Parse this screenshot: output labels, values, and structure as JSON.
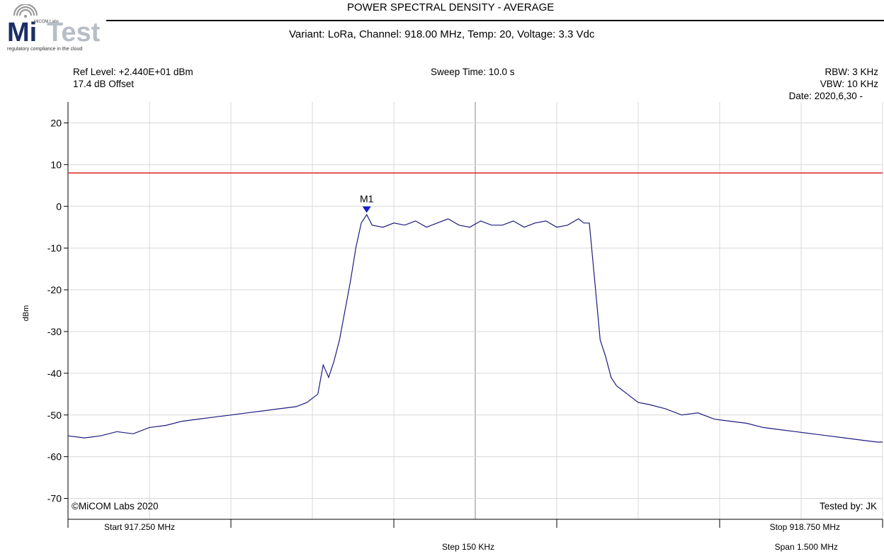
{
  "logo": {
    "brand_left": "Mi",
    "brand_right": "Test",
    "tag_small": "MiCOM Labs",
    "tagline": "regulatory compliance in the cloud",
    "icon": "wifi-signal-icon"
  },
  "header": {
    "title": "POWER SPECTRAL DENSITY - AVERAGE",
    "subtitle": "Variant: LoRa, Channel: 918.00 MHz, Temp: 20, Voltage: 3.3 Vdc"
  },
  "settings": {
    "ref_level": "Ref Level: +2.440E+01 dBm",
    "offset": "17.4 dB Offset",
    "sweep_time": "Sweep Time: 10.0 s",
    "rbw": "RBW: 3 KHz",
    "vbw": "VBW: 10 KHz",
    "date": "Date: 2020,6,30 -"
  },
  "footer": {
    "copyright": "©MiCOM Labs 2020",
    "tested_by": "Tested by: JK",
    "start": "Start 917.250 MHz",
    "stop": "Stop 918.750 MHz",
    "step": "Step 150 KHz",
    "span": "Span 1.500 MHz"
  },
  "colors": {
    "trace": "#1c1c80",
    "limit": "#e02020",
    "marker": "#1c1cc8",
    "grid": "#d8d8d8",
    "center_line": "#a8a8a8"
  },
  "chart_data": {
    "type": "line",
    "ylabel": "dBm",
    "xlim": [
      917.25,
      918.75
    ],
    "ylim": [
      -75,
      25
    ],
    "yticks": [
      20,
      10,
      0,
      -10,
      -20,
      -30,
      -40,
      -50,
      -60,
      -70
    ],
    "grid": true,
    "limit_line": {
      "value": 8
    },
    "marker": {
      "label": "M1",
      "x": 917.8,
      "y": -1.2
    },
    "series": [
      {
        "x": [
          917.25,
          917.28,
          917.31,
          917.34,
          917.37,
          917.4,
          917.43,
          917.46,
          917.49,
          917.52,
          917.55,
          917.58,
          917.61,
          917.64,
          917.67,
          917.69,
          917.7,
          917.71,
          917.72,
          917.73,
          917.74,
          917.75,
          917.76,
          917.77,
          917.78,
          917.79,
          917.8,
          917.81,
          917.83,
          917.85,
          917.87,
          917.89,
          917.91,
          917.93,
          917.95,
          917.97,
          917.99,
          918.01,
          918.03,
          918.05,
          918.07,
          918.09,
          918.11,
          918.13,
          918.15,
          918.17,
          918.19,
          918.2,
          918.21,
          918.22,
          918.23,
          918.24,
          918.25,
          918.26,
          918.27,
          918.28,
          918.3,
          918.32,
          918.35,
          918.38,
          918.41,
          918.44,
          918.47,
          918.5,
          918.53,
          918.56,
          918.59,
          918.62,
          918.65,
          918.68,
          918.71,
          918.74,
          918.75
        ],
        "y": [
          -55,
          -55.5,
          -55,
          -54,
          -54.5,
          -53,
          -52.5,
          -51.5,
          -51,
          -50.5,
          -50,
          -49.5,
          -49,
          -48.5,
          -48,
          -47,
          -46,
          -45,
          -38,
          -41,
          -37,
          -32,
          -25,
          -18,
          -10,
          -4,
          -2,
          -4.5,
          -5,
          -4,
          -4.5,
          -3.5,
          -5,
          -4,
          -3,
          -4.5,
          -5,
          -3.5,
          -4.5,
          -4.5,
          -3.5,
          -5,
          -4,
          -3.5,
          -5,
          -4.5,
          -3,
          -4,
          -4,
          -18,
          -32,
          -36,
          -41,
          -43,
          -44,
          -45,
          -47,
          -47.5,
          -48.5,
          -50,
          -49.5,
          -51,
          -51.5,
          -52,
          -53,
          -53.5,
          -54,
          -54.5,
          -55,
          -55.5,
          -56,
          -56.5,
          -56.5
        ]
      }
    ]
  }
}
